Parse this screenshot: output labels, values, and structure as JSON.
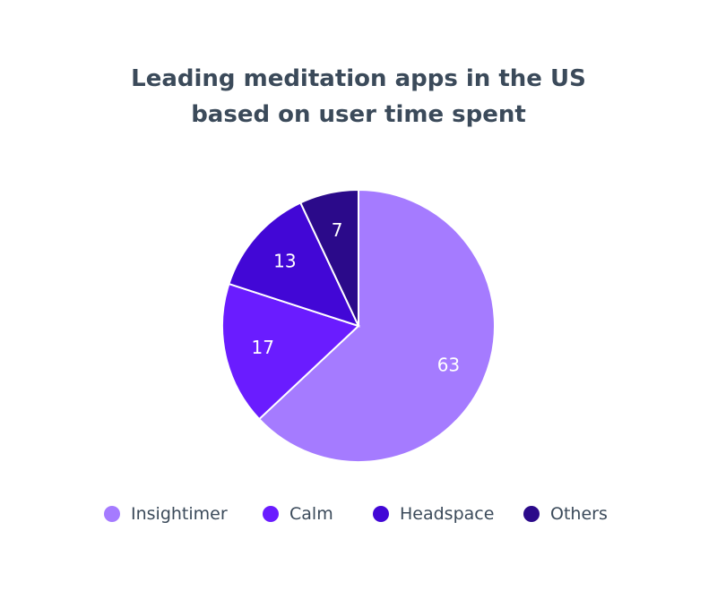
{
  "chart_data": {
    "type": "pie",
    "title_lines": [
      "Leading meditation apps in the US",
      "based on user time spent"
    ],
    "categories": [
      "Insightimer",
      "Calm",
      "Headspace",
      "Others"
    ],
    "values": [
      63,
      17,
      13,
      7
    ],
    "colors": [
      "#a57bff",
      "#6a1cff",
      "#4207d6",
      "#2b0a8a"
    ],
    "legend_placement": "bottom"
  }
}
